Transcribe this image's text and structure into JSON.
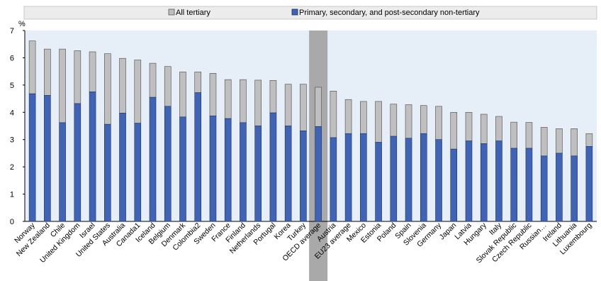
{
  "chart_data": {
    "type": "bar",
    "stacked": true,
    "ylabel": "%",
    "ylim": [
      0,
      7
    ],
    "yticks": [
      "0",
      "1",
      "2",
      "3",
      "4",
      "5",
      "6",
      "7"
    ],
    "grid": false,
    "legend_position": "top",
    "highlight_band": "OECD average",
    "categories": [
      "Norway",
      "New Zealand",
      "Chile",
      "United Kingdom",
      "Israel",
      "United States",
      "Australia",
      "Canada1",
      "Iceland",
      "Belgium",
      "Denmark",
      "Colombia2",
      "Sweden",
      "France",
      "Finland",
      "Netherlands",
      "Portugal",
      "Korea",
      "Turkey",
      "OECD average",
      "Austria",
      "EU23 average",
      "Mexico",
      "Estonia",
      "Poland",
      "Spain",
      "Slovenia",
      "Germany",
      "Japan",
      "Latvia",
      "Hungary",
      "Italy",
      "Slovak Republic",
      "Czech Republic",
      "Russian…",
      "Ireland",
      "Lithuania",
      "Luxembourg"
    ],
    "series": [
      {
        "name": "Primary, secondary, and post-secondary non-tertiary",
        "color": "#3f63b5",
        "values": [
          4.68,
          4.62,
          3.62,
          4.32,
          4.75,
          3.56,
          3.97,
          3.6,
          4.55,
          4.22,
          3.83,
          4.72,
          3.87,
          3.77,
          3.62,
          3.5,
          3.98,
          3.5,
          3.32,
          3.48,
          3.07,
          3.22,
          3.22,
          2.9,
          3.12,
          3.05,
          3.22,
          3.0,
          2.65,
          2.95,
          2.85,
          2.95,
          2.68,
          2.68,
          2.4,
          2.5,
          2.4,
          2.75
        ]
      },
      {
        "name": "All tertiary",
        "color": "#bfbfbf",
        "totals": [
          6.62,
          6.32,
          6.32,
          6.26,
          6.22,
          6.15,
          5.98,
          5.92,
          5.8,
          5.68,
          5.48,
          5.48,
          5.43,
          5.2,
          5.2,
          5.18,
          5.17,
          5.03,
          5.03,
          4.92,
          4.78,
          4.47,
          4.4,
          4.4,
          4.3,
          4.28,
          4.25,
          4.22,
          4.0,
          4.0,
          3.93,
          3.85,
          3.64,
          3.63,
          3.45,
          3.4,
          3.4,
          3.22
        ]
      }
    ]
  }
}
